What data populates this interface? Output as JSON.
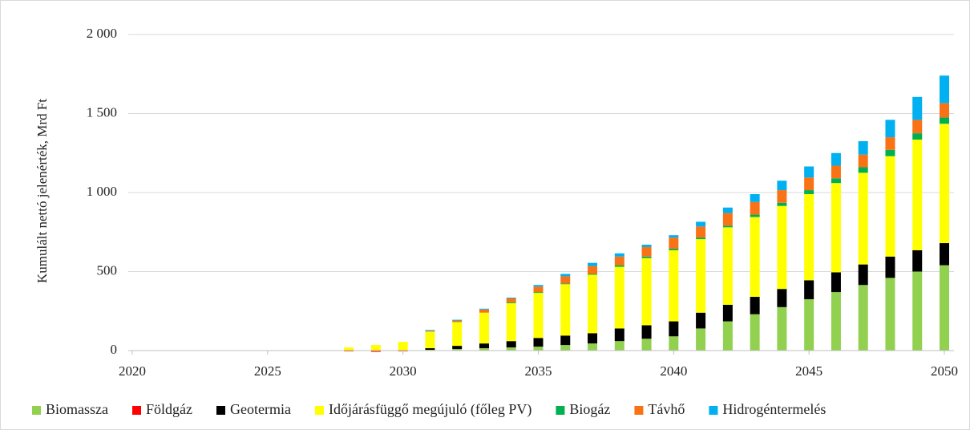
{
  "chart_data": {
    "type": "bar",
    "stacked": true,
    "title": "",
    "xlabel": "",
    "ylabel": "Kumulált  nettó jelenérték,  Mrd Ft",
    "ylim": [
      0,
      2000
    ],
    "yticks": [
      0,
      500,
      1000,
      1500,
      2000
    ],
    "ytick_labels": [
      "0",
      "500",
      "1 000",
      "1 500",
      "2 000"
    ],
    "xticks": [
      2020,
      2025,
      2030,
      2035,
      2040,
      2045,
      2050
    ],
    "xtick_labels": [
      "2020",
      "2025",
      "2030",
      "2035",
      "2040",
      "2045",
      "2050"
    ],
    "grid": "horizontal",
    "legend_position": "bottom",
    "categories": [
      2020,
      2021,
      2022,
      2023,
      2024,
      2025,
      2026,
      2027,
      2028,
      2029,
      2030,
      2031,
      2032,
      2033,
      2034,
      2035,
      2036,
      2037,
      2038,
      2039,
      2040,
      2041,
      2042,
      2043,
      2044,
      2045,
      2046,
      2047,
      2048,
      2049,
      2050
    ],
    "series": [
      {
        "name": "Biomassza",
        "color": "#92D050",
        "values": [
          0,
          0,
          0,
          0,
          0,
          0,
          0,
          0,
          0,
          0,
          0,
          5,
          10,
          15,
          20,
          25,
          35,
          45,
          60,
          75,
          90,
          140,
          185,
          230,
          275,
          325,
          370,
          415,
          460,
          500,
          540
        ]
      },
      {
        "name": "Földgáz",
        "color": "#FF0000",
        "values": [
          0,
          0,
          0,
          0,
          0,
          0,
          0,
          0,
          -5,
          -8,
          -5,
          0,
          0,
          0,
          0,
          0,
          0,
          0,
          0,
          0,
          0,
          0,
          0,
          0,
          0,
          0,
          0,
          0,
          0,
          0,
          0
        ]
      },
      {
        "name": "Geotermia",
        "color": "#000000",
        "values": [
          0,
          0,
          0,
          0,
          0,
          0,
          0,
          0,
          0,
          0,
          0,
          10,
          20,
          30,
          40,
          55,
          60,
          65,
          80,
          85,
          95,
          100,
          105,
          110,
          115,
          120,
          125,
          130,
          135,
          135,
          140
        ]
      },
      {
        "name": "Időjárásfüggő megújuló (főleg PV)",
        "color": "#FFFF00",
        "values": [
          0,
          0,
          0,
          0,
          0,
          0,
          0,
          0,
          20,
          35,
          55,
          105,
          150,
          195,
          240,
          285,
          325,
          370,
          390,
          425,
          450,
          465,
          490,
          505,
          525,
          545,
          565,
          580,
          635,
          700,
          755
        ]
      },
      {
        "name": "Biogáz",
        "color": "#00B050",
        "values": [
          0,
          0,
          0,
          0,
          0,
          0,
          0,
          0,
          0,
          0,
          0,
          0,
          0,
          0,
          5,
          5,
          5,
          5,
          10,
          10,
          10,
          10,
          10,
          15,
          20,
          25,
          30,
          35,
          40,
          40,
          40
        ]
      },
      {
        "name": "Távhő",
        "color": "#F97316",
        "values": [
          0,
          0,
          0,
          0,
          0,
          0,
          0,
          0,
          0,
          0,
          0,
          5,
          10,
          20,
          25,
          35,
          45,
          50,
          55,
          60,
          70,
          70,
          80,
          80,
          80,
          80,
          80,
          80,
          80,
          85,
          90
        ]
      },
      {
        "name": "Hidrogéntermelés",
        "color": "#00B0F0",
        "values": [
          0,
          0,
          0,
          0,
          0,
          0,
          0,
          0,
          0,
          0,
          0,
          5,
          5,
          5,
          5,
          10,
          15,
          20,
          20,
          15,
          15,
          30,
          35,
          50,
          60,
          70,
          80,
          85,
          110,
          145,
          175
        ]
      }
    ]
  }
}
